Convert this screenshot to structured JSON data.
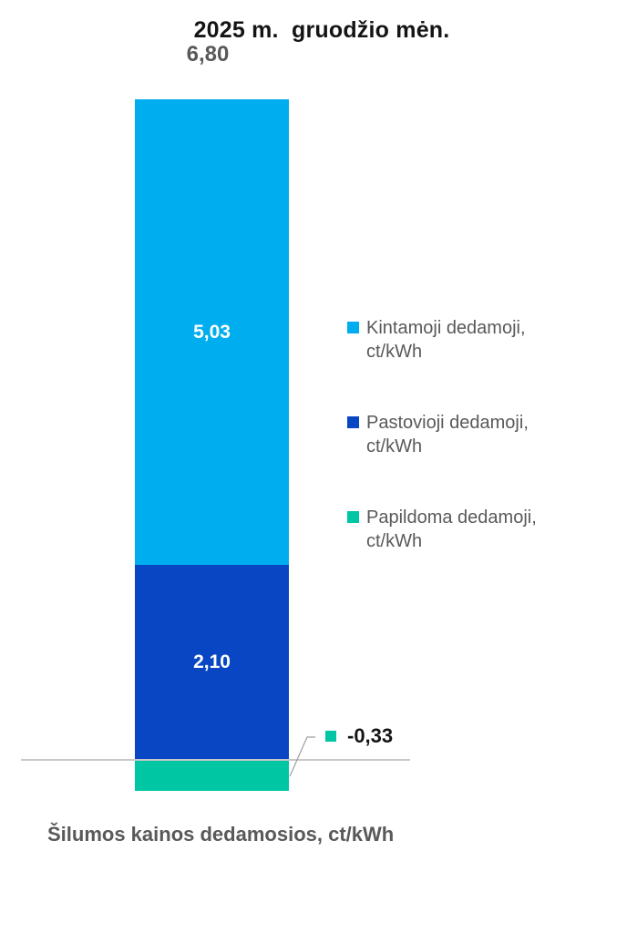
{
  "title": "2025 m.  gruodžio mėn.",
  "total": {
    "label": "6,80"
  },
  "callout": {
    "label": "-0,33"
  },
  "axis_title": "Šilumos kainos dedamosios, ct/kWh",
  "legend": {
    "items": [
      {
        "label": "Kintamoji dedamoji, ct/kWh",
        "color": "#00AEEF"
      },
      {
        "label": "Pastovioji dedamoji, ct/kWh",
        "color": "#0846C4"
      },
      {
        "label": "Papildoma dedamoji, ct/kWh",
        "color": "#00C6A4"
      }
    ]
  },
  "colors": {
    "series_light_blue": "#00AEEF",
    "series_dark_blue": "#0846C4",
    "series_teal": "#00C6A4",
    "axis_line": "#C8C8C8",
    "leader_line": "#9E9E9E",
    "title_text": "#141414",
    "secondary_text": "#595959"
  },
  "chart_data": {
    "type": "bar",
    "stacked": true,
    "orientation": "vertical",
    "title": "2025 m.  gruodžio mėn.",
    "categories": [
      "Šilumos kainos dedamosios, ct/kWh"
    ],
    "series": [
      {
        "name": "Kintamoji dedamoji, ct/kWh",
        "values": [
          5.03
        ],
        "data_label": "5,03",
        "color": "#00AEEF"
      },
      {
        "name": "Pastovioji dedamoji, ct/kWh",
        "values": [
          2.1
        ],
        "data_label": "2,10",
        "color": "#0846C4"
      },
      {
        "name": "Papildoma dedamoji, ct/kWh",
        "values": [
          -0.33
        ],
        "data_label": "-0,33",
        "color": "#00C6A4"
      }
    ],
    "total": 6.8,
    "total_label": "6,80",
    "xlabel": "Šilumos kainos dedamosios, ct/kWh",
    "ylabel": "",
    "legend_position": "right",
    "grid": false,
    "baseline": 0,
    "data_labels_shown": true
  }
}
